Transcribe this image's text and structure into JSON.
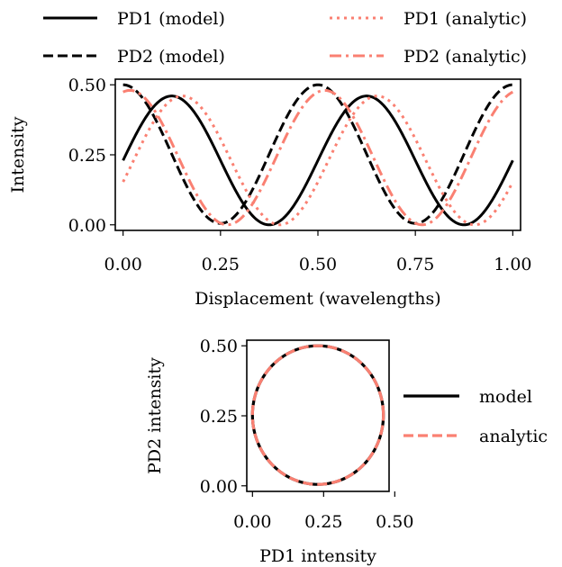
{
  "chart_data": [
    {
      "type": "line",
      "xlabel": "Displacement (wavelengths)",
      "ylabel": "Intensity",
      "xlim": [
        -0.02,
        1.02
      ],
      "ylim": [
        -0.02,
        0.52
      ],
      "xticks": [
        0.0,
        0.25,
        0.5,
        0.75,
        1.0
      ],
      "xtick_labels": [
        "0.00",
        "0.25",
        "0.50",
        "0.75",
        "1.00"
      ],
      "yticks": [
        0.0,
        0.25,
        0.5
      ],
      "ytick_labels": [
        "0.00",
        "0.25",
        "0.50"
      ],
      "grid": false,
      "legend_position": "above, two columns",
      "period": 0.5,
      "series": [
        {
          "name": "PD1 (model)",
          "color": "#000000",
          "style": "solid",
          "x": [
            0.0,
            0.125,
            0.25,
            0.375,
            0.5,
            0.625,
            0.75,
            0.875,
            1.0
          ],
          "y": [
            0.25,
            0.46,
            0.25,
            0.0,
            0.25,
            0.46,
            0.25,
            0.0,
            0.25
          ]
        },
        {
          "name": "PD2 (model)",
          "color": "#000000",
          "style": "dashed",
          "x": [
            0.0,
            0.125,
            0.25,
            0.375,
            0.5,
            0.625,
            0.75,
            0.875,
            1.0
          ],
          "y": [
            0.5,
            0.25,
            0.005,
            0.25,
            0.5,
            0.25,
            0.005,
            0.25,
            0.5
          ]
        },
        {
          "name": "PD1 (analytic)",
          "color": "#fa8072",
          "style": "dotted",
          "x": [
            0.0,
            0.14,
            0.25,
            0.39,
            0.5,
            0.64,
            0.75,
            0.89,
            1.0
          ],
          "y": [
            0.17,
            0.46,
            0.33,
            0.0,
            0.17,
            0.46,
            0.33,
            0.0,
            0.17
          ]
        },
        {
          "name": "PD2 (analytic)",
          "color": "#fa8072",
          "style": "dashdot",
          "x": [
            0.0,
            0.14,
            0.25,
            0.39,
            0.5,
            0.64,
            0.75,
            0.89,
            1.0
          ],
          "y": [
            0.48,
            0.32,
            0.0,
            0.25,
            0.48,
            0.32,
            0.0,
            0.25,
            0.48
          ]
        }
      ]
    },
    {
      "type": "line",
      "xlabel": "PD1 intensity",
      "ylabel": "PD2 intensity",
      "xlim": [
        -0.02,
        0.48
      ],
      "ylim": [
        -0.02,
        0.52
      ],
      "xticks": [
        0.0,
        0.25,
        0.5
      ],
      "xtick_labels": [
        "0.00",
        "0.25",
        "0.50"
      ],
      "yticks": [
        0.0,
        0.25,
        0.5
      ],
      "ytick_labels": [
        "0.00",
        "0.25",
        "0.50"
      ],
      "grid": false,
      "legend_position": "right",
      "series": [
        {
          "name": "model",
          "color": "#000000",
          "style": "solid",
          "x": [
            0.46,
            0.25,
            0.0,
            0.25,
            0.46
          ],
          "y": [
            0.25,
            0.5,
            0.25,
            0.005,
            0.25
          ]
        },
        {
          "name": "analytic",
          "color": "#fa8072",
          "style": "dashed",
          "x": [
            0.46,
            0.25,
            0.0,
            0.25,
            0.46
          ],
          "y": [
            0.25,
            0.5,
            0.25,
            0.005,
            0.25
          ]
        }
      ]
    }
  ]
}
